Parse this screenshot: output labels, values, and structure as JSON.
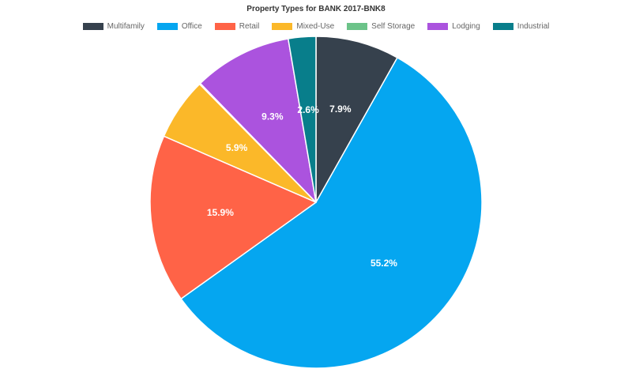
{
  "chart_data": {
    "type": "pie",
    "title": "Property Types for BANK 2017-BNK8",
    "legend_position": "top",
    "categories": [
      "Multifamily",
      "Office",
      "Retail",
      "Mixed-Use",
      "Self Storage",
      "Lodging",
      "Industrial"
    ],
    "values": [
      7.9,
      55.2,
      15.9,
      5.9,
      0.1,
      9.3,
      2.6
    ],
    "labels": [
      "7.9%",
      "55.2%",
      "15.9%",
      "5.9%",
      "",
      "9.3%",
      "2.6%"
    ],
    "colors": [
      "#36414d",
      "#05a6f0",
      "#ff6347",
      "#fbb829",
      "#6cc389",
      "#ab53de",
      "#087e8b"
    ]
  }
}
